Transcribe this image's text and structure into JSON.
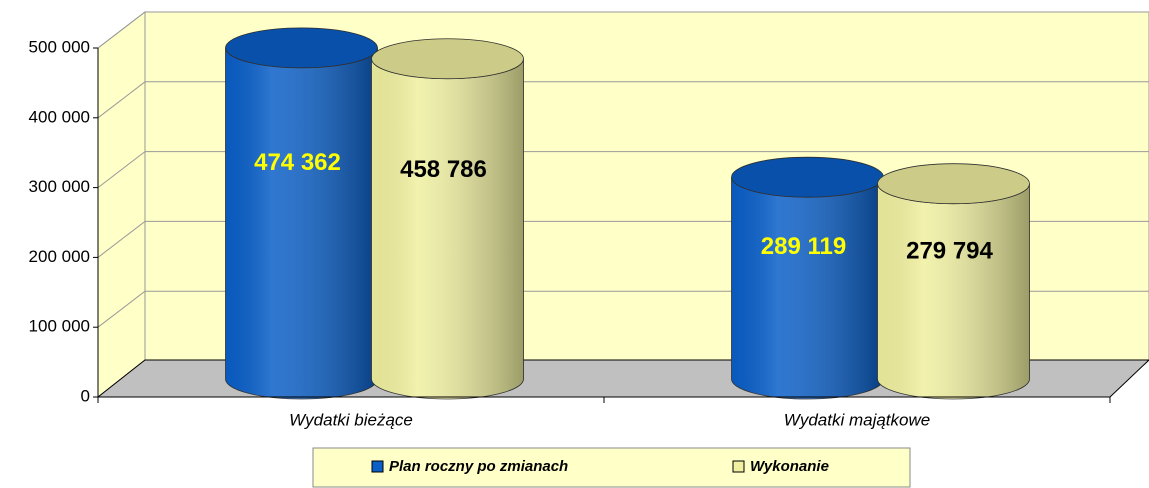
{
  "chart_data": {
    "type": "cylinder-bar",
    "categories": [
      "Wydatki bieżące",
      "Wydatki majątkowe"
    ],
    "series": [
      {
        "name": "Plan roczny po zmianach",
        "color": "#0a5fc8",
        "values": [
          474362,
          289119
        ],
        "value_labels": [
          "474 362",
          "289 119"
        ],
        "label_color": "#ffff00"
      },
      {
        "name": "Wykonanie",
        "color": "#f0f0a0",
        "values": [
          458786,
          279794
        ],
        "value_labels": [
          "458 786",
          "279 794"
        ],
        "label_color": "#000000"
      }
    ],
    "ylim": [
      0,
      500000
    ],
    "yticks": [
      0,
      {
        "value": 100000,
        "label": "100 000"
      },
      {
        "value": 200000,
        "label": "200 000"
      },
      {
        "value": 300000,
        "label": "300 000"
      },
      {
        "value": 400000,
        "label": "400 000"
      },
      {
        "value": 500000,
        "label": "500 000"
      }
    ],
    "grid": true,
    "legend": "bottom"
  }
}
